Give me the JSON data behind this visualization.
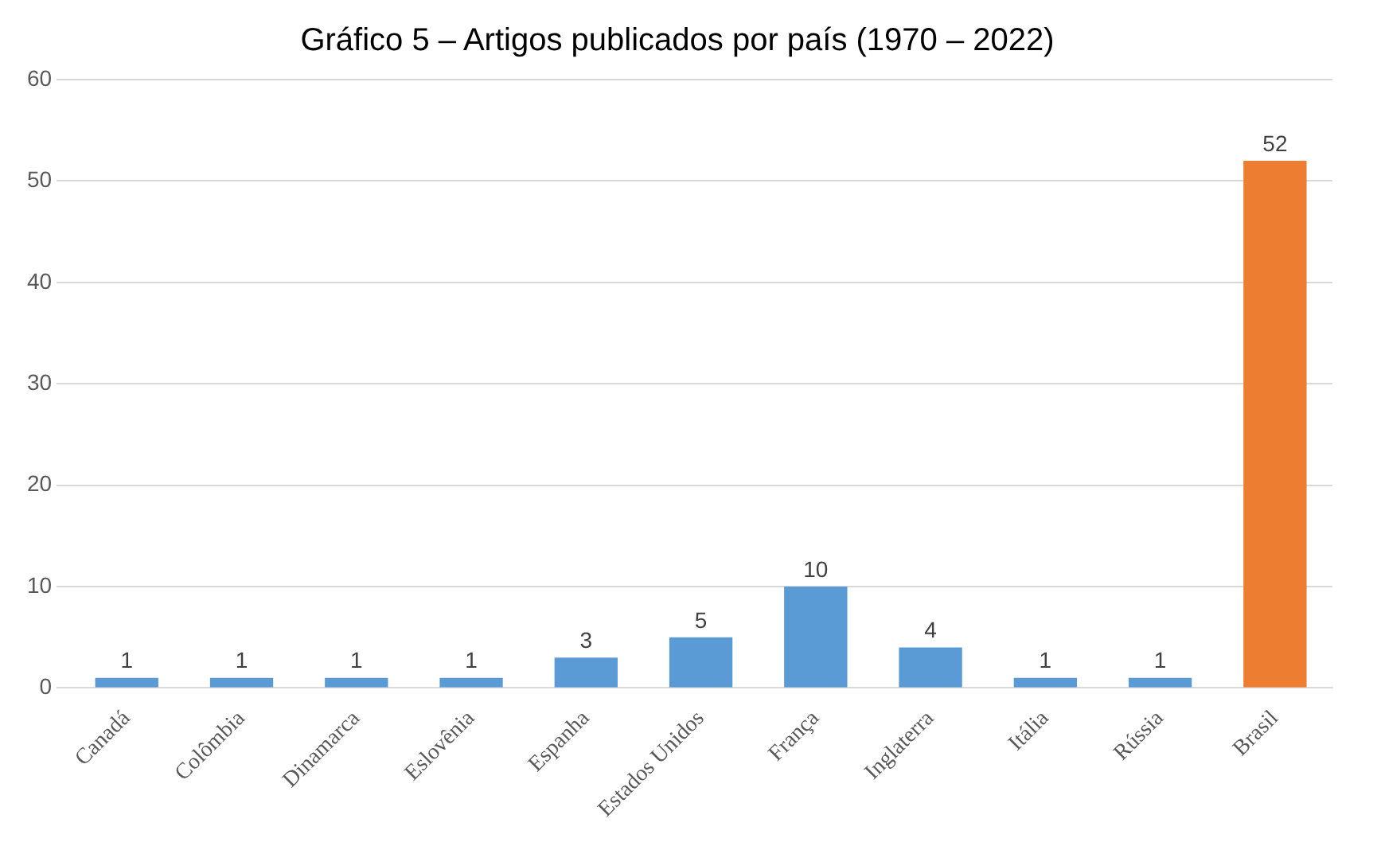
{
  "chart_data": {
    "type": "bar",
    "title": "Gráfico 5 – Artigos publicados por país (1970 – 2022)",
    "categories": [
      "Canadá",
      "Colômbia",
      "Dinamarca",
      "Eslovênia",
      "Espanha",
      "Estados Unidos",
      "França",
      "Inglaterra",
      "Itália",
      "Rússia",
      "Brasil"
    ],
    "values": [
      1,
      1,
      1,
      1,
      3,
      5,
      10,
      4,
      1,
      1,
      52
    ],
    "colors": [
      "#5b9bd5",
      "#5b9bd5",
      "#5b9bd5",
      "#5b9bd5",
      "#5b9bd5",
      "#5b9bd5",
      "#5b9bd5",
      "#5b9bd5",
      "#5b9bd5",
      "#5b9bd5",
      "#ed7d31"
    ],
    "ylim": [
      0,
      60
    ],
    "yticks": [
      0,
      10,
      20,
      30,
      40,
      50,
      60
    ],
    "grid": "y",
    "data_labels": true,
    "legend": false
  }
}
